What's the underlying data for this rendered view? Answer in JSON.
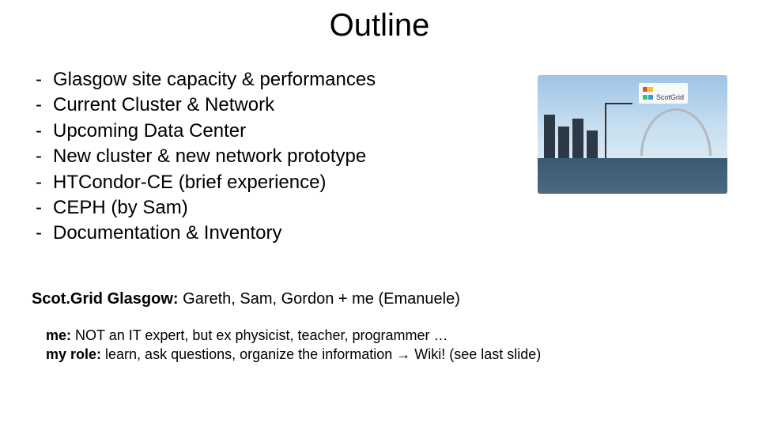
{
  "title": "Outline",
  "bullets": [
    "Glasgow site capacity & performances",
    "Current Cluster & Network",
    "Upcoming Data Center",
    "New cluster & new network prototype",
    "HTCondor-CE (brief experience)",
    "CEPH (by Sam)",
    "Documentation & Inventory"
  ],
  "image": {
    "logo_text": "ScotGrid",
    "logo_colors": [
      "#e74c3c",
      "#f1c40f",
      "#2ecc71",
      "#3498db"
    ]
  },
  "footer": {
    "team_label": "Scot.Grid Glasgow:",
    "team_rest": "  Gareth, Sam, Gordon + me (Emanuele)",
    "me_label": "me:",
    "me_rest": "  NOT an IT expert, but ex physicist, teacher, programmer …",
    "role_label": "my role:",
    "role_rest": "  learn, ask questions, organize the information  →  Wiki! (see last slide)"
  },
  "style": {
    "title_fontsize": 40,
    "bullet_fontsize": 24,
    "footer1_fontsize": 20,
    "footer2_fontsize": 18,
    "text_color": "#000000",
    "background": "#ffffff"
  }
}
